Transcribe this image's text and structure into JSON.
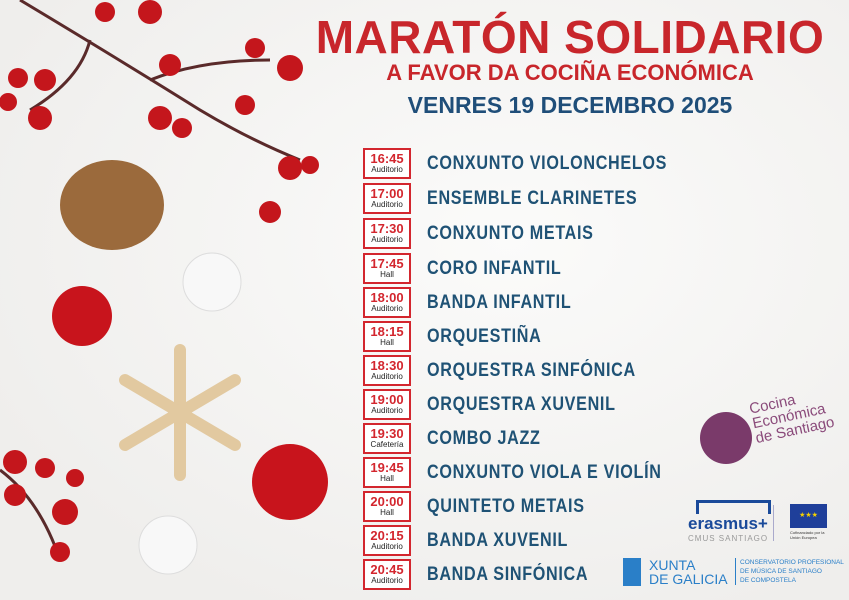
{
  "header": {
    "title": "MARATÓN SOLIDARIO",
    "subtitle": "A FAVOR DA COCIÑA ECONÓMICA",
    "date": "VENRES 19 DECEMBRO 2025"
  },
  "schedule": [
    {
      "time": "16:45",
      "venue": "Auditorio",
      "name": "CONXUNTO VIOLONCHELOS"
    },
    {
      "time": "17:00",
      "venue": "Auditorio",
      "name": "ENSEMBLE CLARINETES"
    },
    {
      "time": "17:30",
      "venue": "Auditorio",
      "name": "CONXUNTO METAIS"
    },
    {
      "time": "17:45",
      "venue": "Hall",
      "name": "CORO INFANTIL"
    },
    {
      "time": "18:00",
      "venue": "Auditorio",
      "name": "BANDA INFANTIL"
    },
    {
      "time": "18:15",
      "venue": "Hall",
      "name": "ORQUESTIÑA"
    },
    {
      "time": "18:30",
      "venue": "Auditorio",
      "name": "ORQUESTRA SINFÓNICA"
    },
    {
      "time": "19:00",
      "venue": "Auditorio",
      "name": "ORQUESTRA XUVENIL"
    },
    {
      "time": "19:30",
      "venue": "Cafetería",
      "name": "COMBO JAZZ"
    },
    {
      "time": "19:45",
      "venue": "Hall",
      "name": "CONXUNTO VIOLA E VIOLÍN"
    },
    {
      "time": "20:00",
      "venue": "Hall",
      "name": "QUINTETO METAIS"
    },
    {
      "time": "20:15",
      "venue": "Auditorio",
      "name": "BANDA XUVENIL"
    },
    {
      "time": "20:45",
      "venue": "Auditorio",
      "name": "BANDA SINFÓNICA"
    }
  ],
  "logos": {
    "cocina": {
      "line1": "Cocina",
      "line2": "Económica",
      "line3": "de Santiago"
    },
    "erasmus": {
      "name": "erasmus+",
      "sub": "CMUS SANTIAGO"
    },
    "eu": {
      "caption": "Cofinanciado por la Unión Europea"
    },
    "xunta": {
      "line1": "XUNTA",
      "line2": "DE GALICIA"
    },
    "conservatorio": {
      "line1": "CONSERVATORIO PROFESIONAL",
      "line2": "DE MÚSICA DE SANTIAGO",
      "line3": "DE COMPOSTELA"
    }
  },
  "colors": {
    "red": "#c8262b",
    "blue": "#1f5275",
    "purple": "#7a3a6a"
  }
}
